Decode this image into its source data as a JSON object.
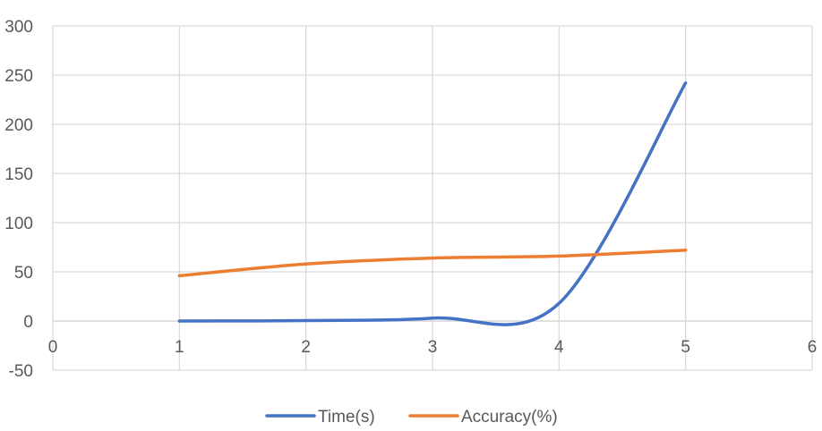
{
  "chart_data": {
    "type": "scatter",
    "title": "",
    "xlabel": "",
    "ylabel": "",
    "xlim": [
      0,
      6
    ],
    "ylim": [
      -50,
      300
    ],
    "x_ticks": [
      0,
      1,
      2,
      3,
      4,
      5,
      6
    ],
    "y_ticks": [
      -50,
      0,
      50,
      100,
      150,
      200,
      250,
      300
    ],
    "grid": true,
    "smooth_lines": true,
    "legend_position": "bottom",
    "series": [
      {
        "name": "Time(s)",
        "color": "#4472C4",
        "x": [
          1,
          2,
          3,
          4,
          5
        ],
        "y": [
          0,
          0.5,
          3,
          18,
          242
        ]
      },
      {
        "name": "Accuracy(%)",
        "color": "#ED7D31",
        "x": [
          1,
          2,
          3,
          4,
          5
        ],
        "y": [
          46,
          58,
          64,
          66,
          72
        ]
      }
    ]
  }
}
